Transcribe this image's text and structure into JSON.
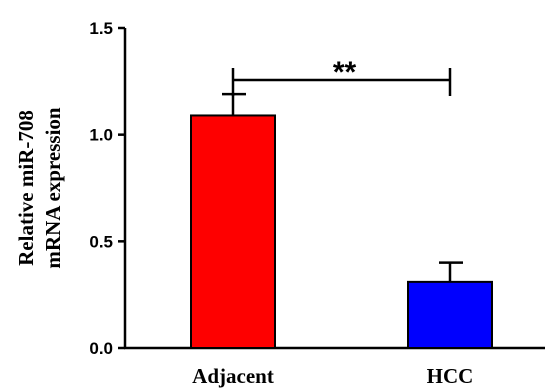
{
  "chart_data": {
    "type": "bar",
    "categories": [
      "Adjacent",
      "HCC"
    ],
    "values": [
      1.09,
      0.31
    ],
    "errors": [
      0.1,
      0.09
    ],
    "colors": [
      "#fe0000",
      "#0000fe"
    ],
    "ylabel": [
      "Relative miR-708",
      "mRNA expression"
    ],
    "ylim": [
      0,
      1.5
    ],
    "yticks": [
      "0.0",
      "0.5",
      "1.0",
      "1.5"
    ],
    "significance": "**",
    "grid": false
  }
}
